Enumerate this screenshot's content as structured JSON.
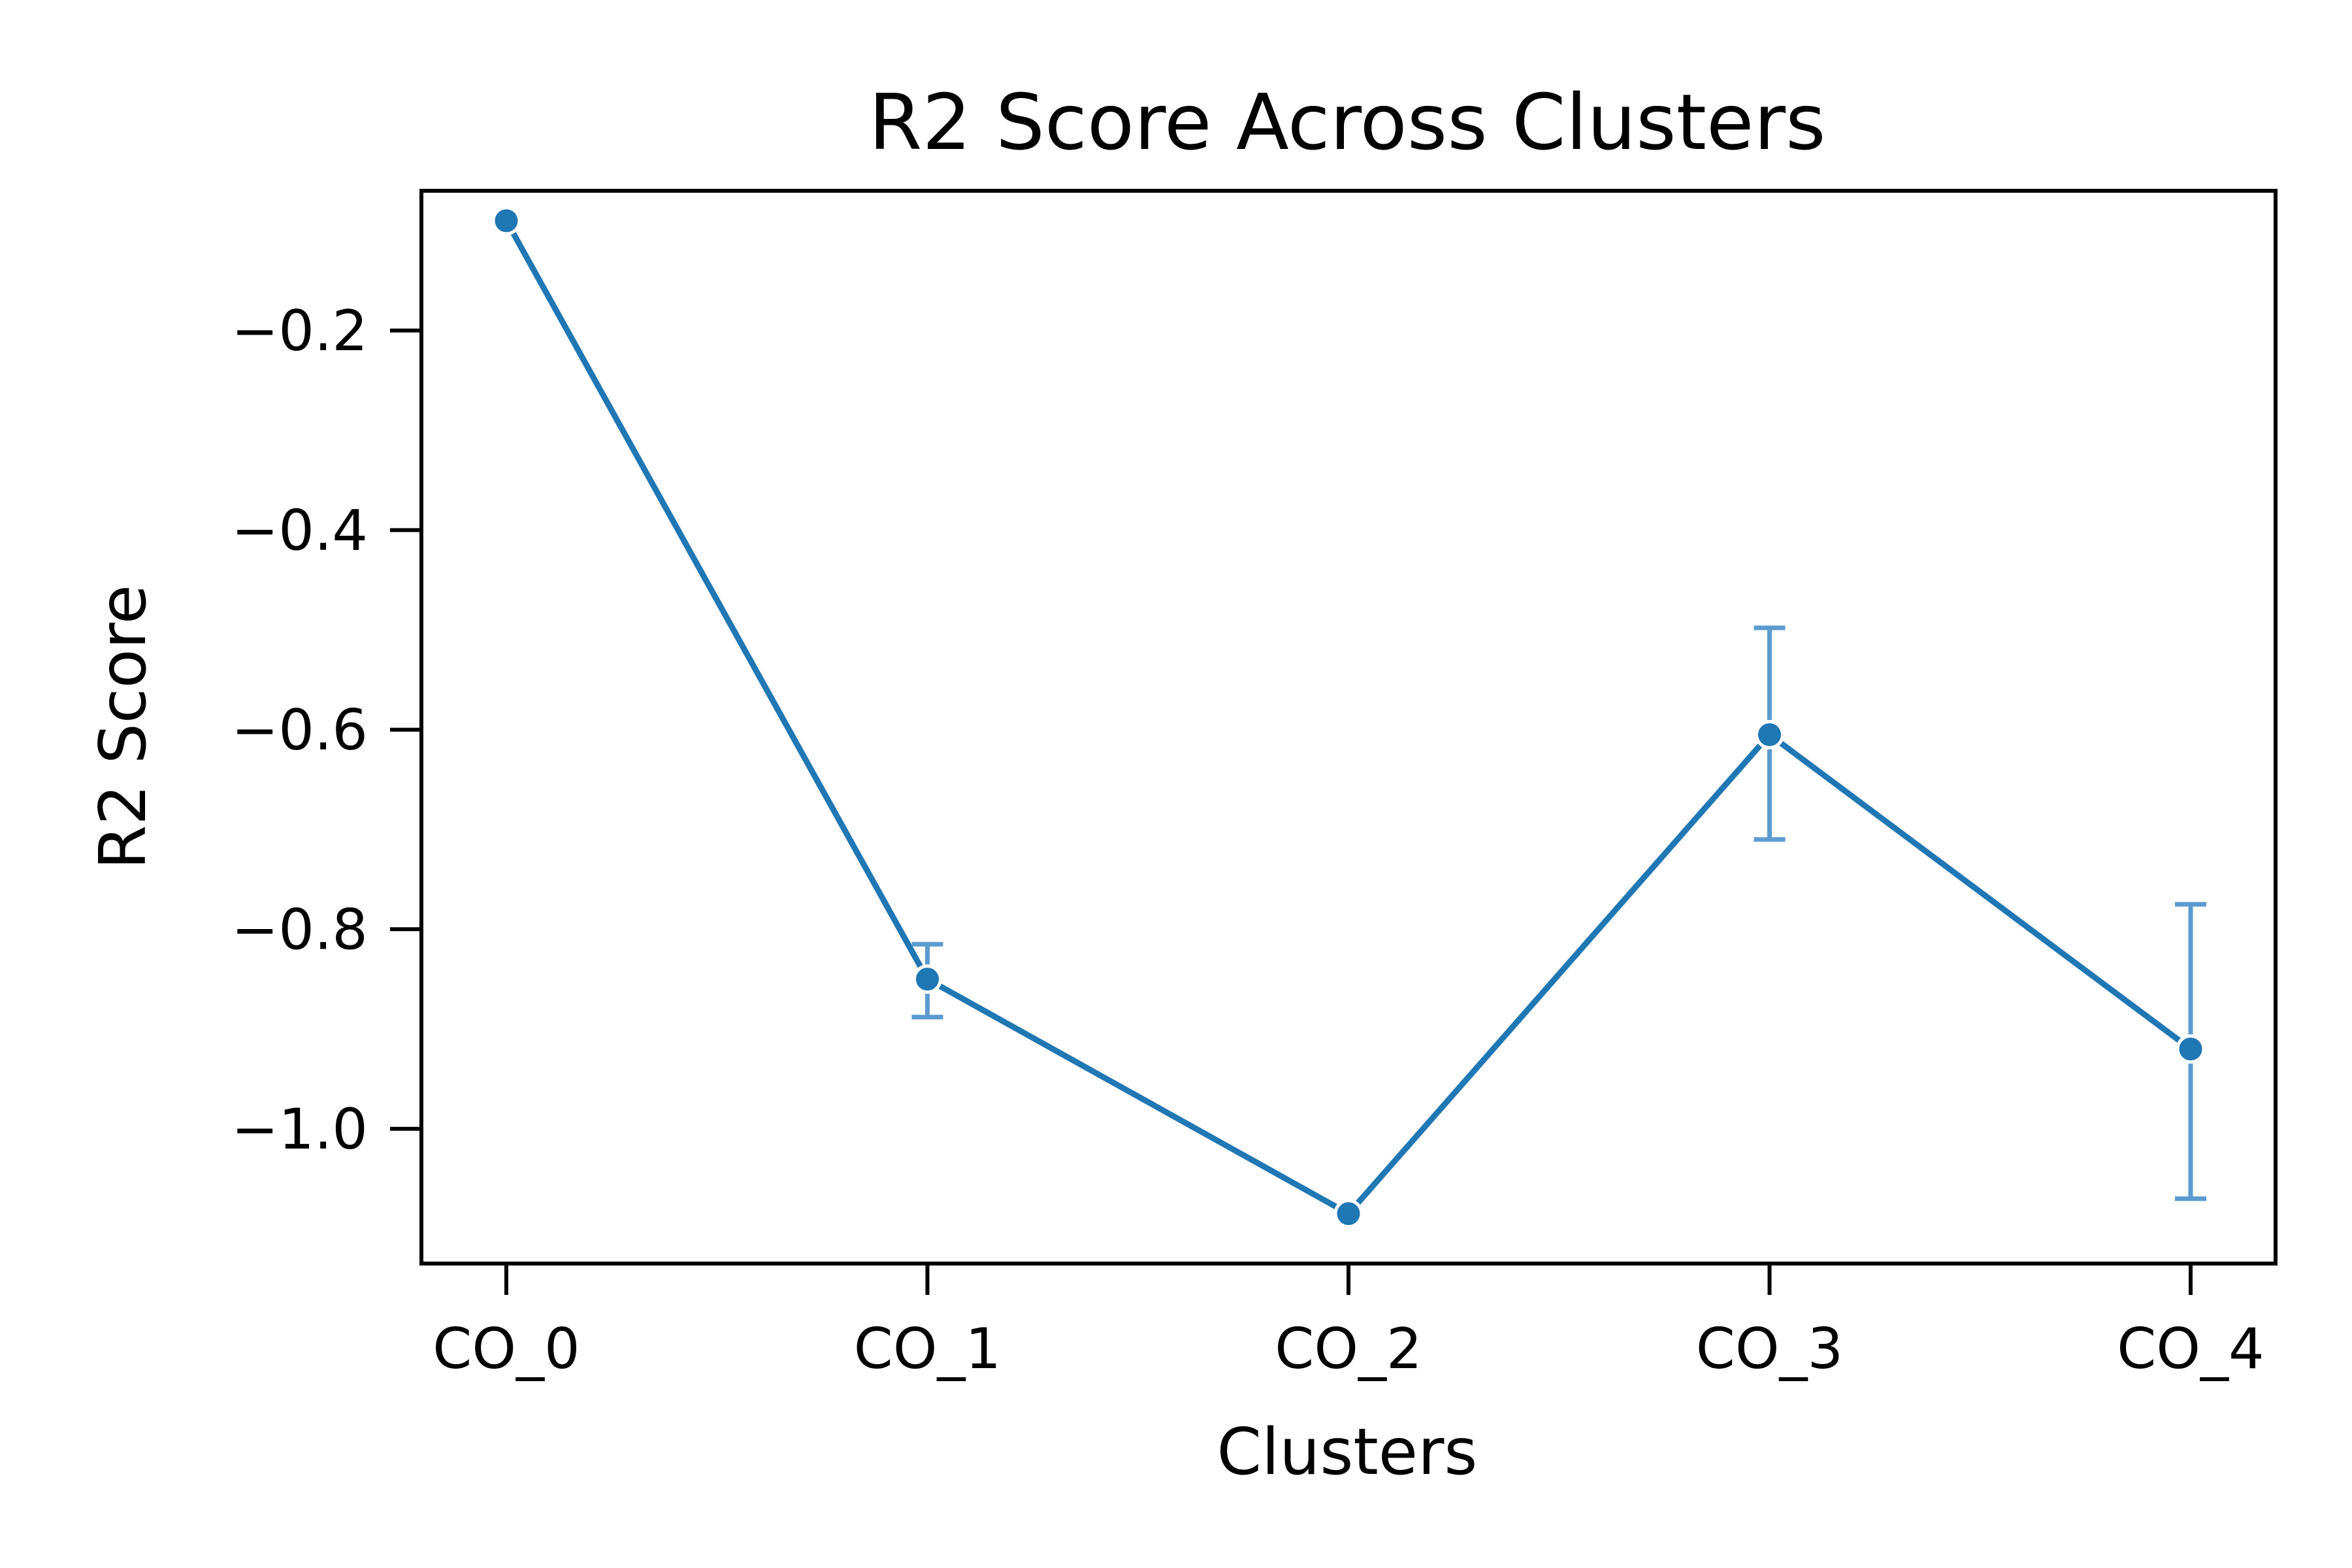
{
  "chart_data": {
    "type": "line",
    "title": "R2 Score Across Clusters",
    "xlabel": "Clusters",
    "ylabel": "R2 Score",
    "categories": [
      "CO_0",
      "CO_1",
      "CO_2",
      "CO_3",
      "CO_4"
    ],
    "series": [
      {
        "values": [
          -0.09,
          -0.85,
          -1.085,
          -0.605,
          -0.92
        ],
        "error_low": [
          -0.09,
          -0.888,
          -1.085,
          -0.71,
          -1.07
        ],
        "error_high": [
          -0.09,
          -0.815,
          -1.085,
          -0.498,
          -0.775
        ],
        "color": "#1f77b4",
        "error_color": "#5b9bd0"
      }
    ],
    "yticks": [
      -1.0,
      -0.8,
      -0.6,
      -0.4,
      -0.2
    ],
    "ytick_labels": [
      "−1.0",
      "−0.8",
      "−0.6",
      "−0.4",
      "−0.2"
    ],
    "ylim": [
      -1.135,
      -0.06
    ],
    "grid": false,
    "legend": false
  }
}
